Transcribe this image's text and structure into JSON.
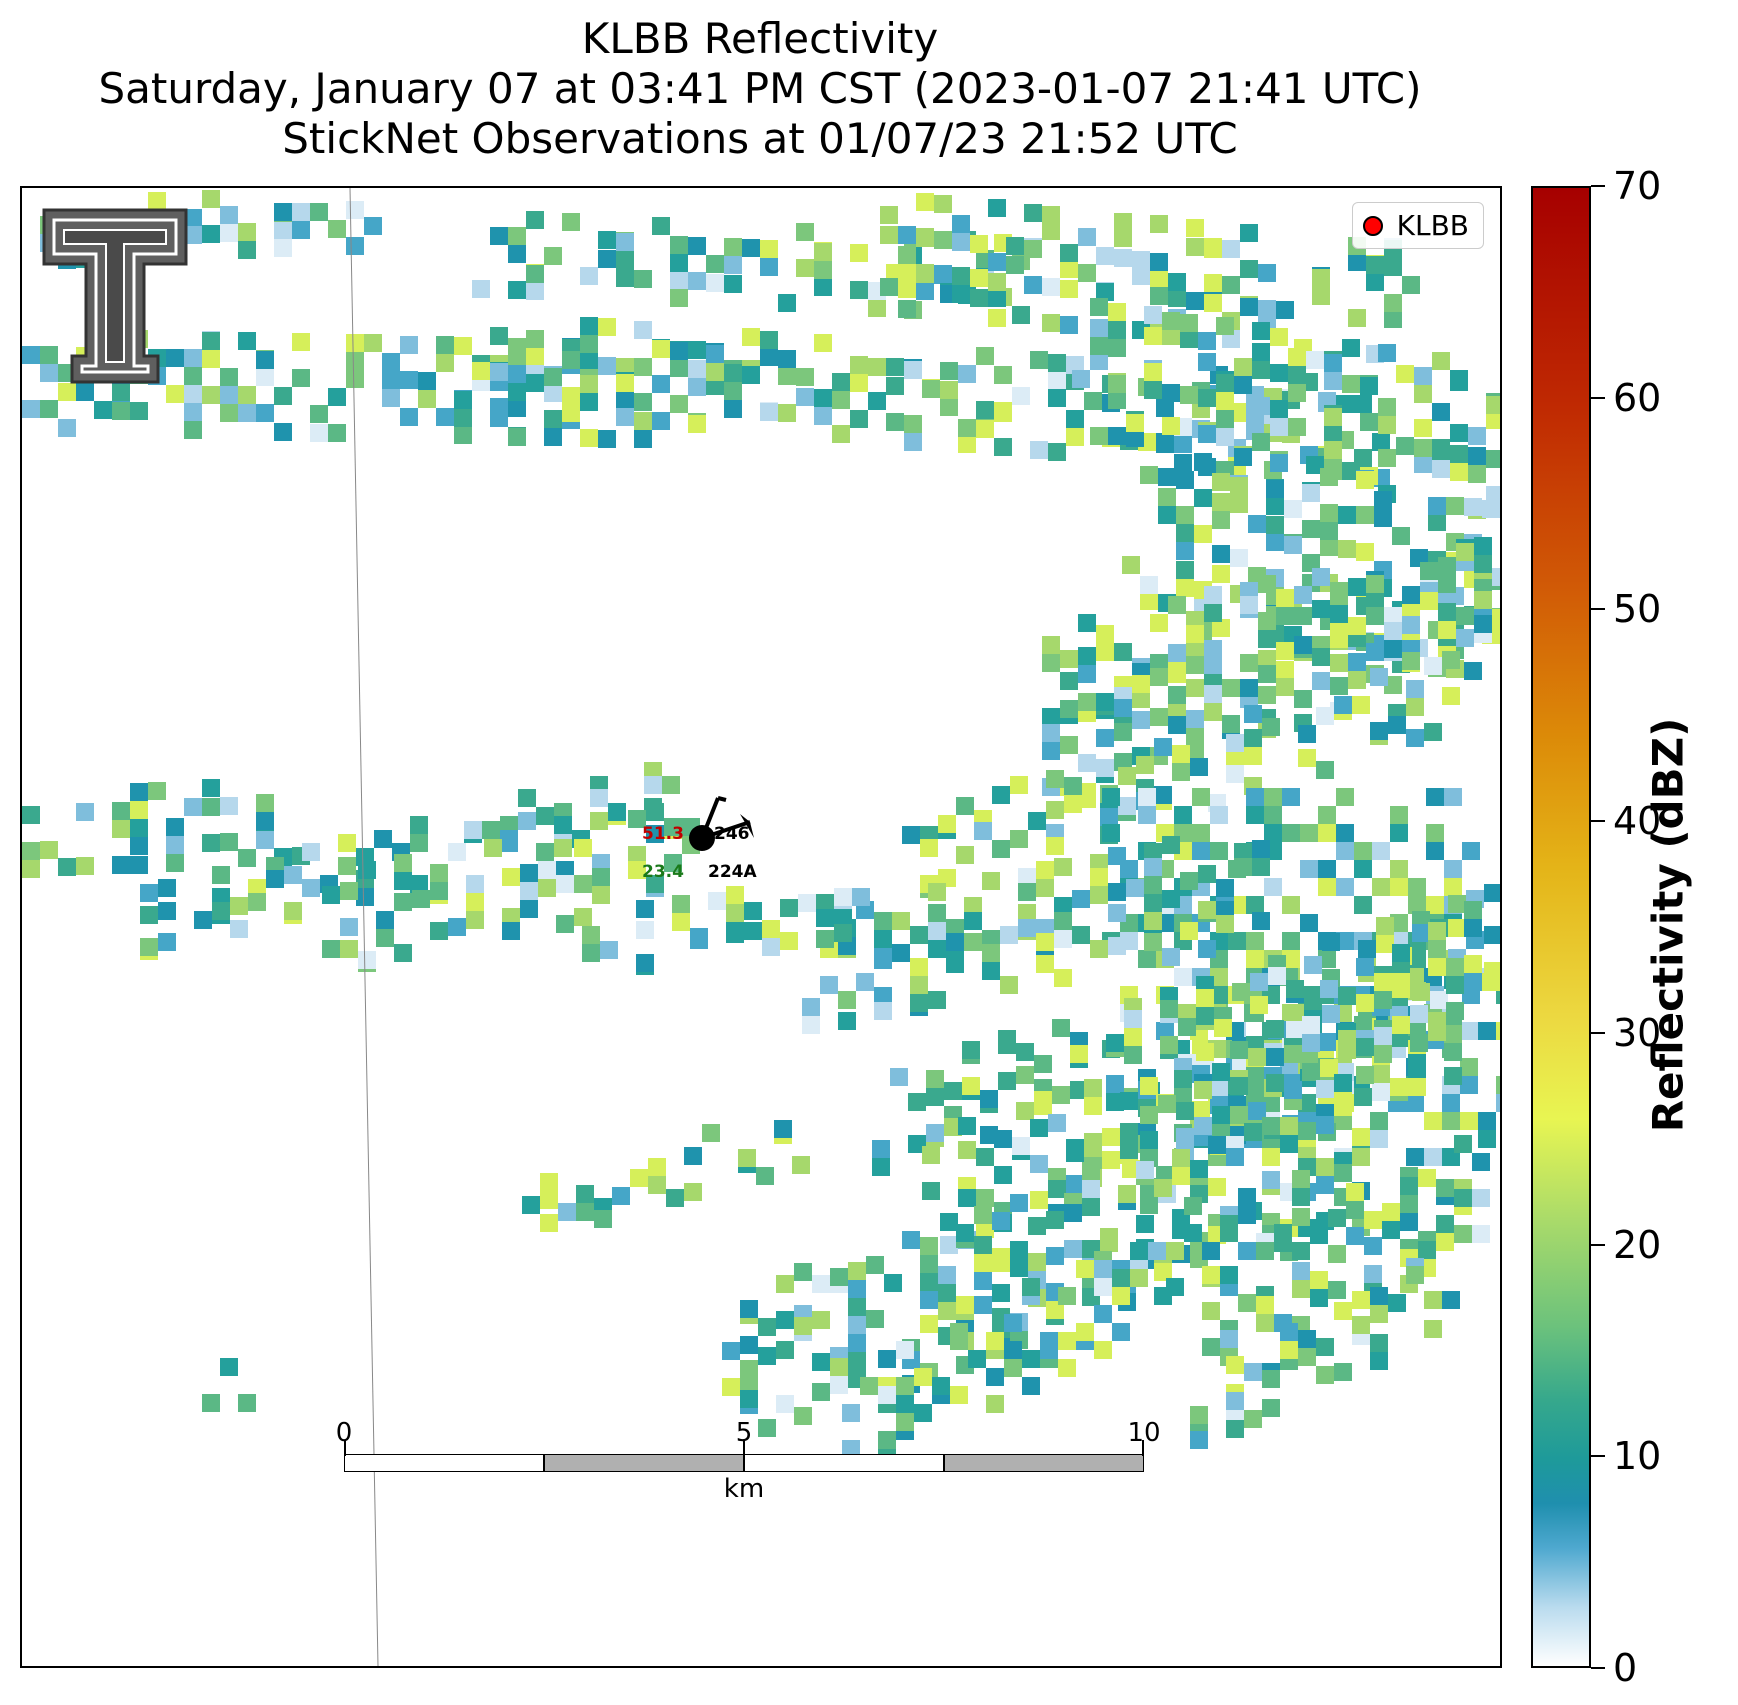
{
  "title": {
    "line1": "KLBB Reflectivity",
    "line2": "Saturday, January 07 at 03:41 PM CST (2023-01-07 21:41 UTC)",
    "line3": "StickNet Observations at 01/07/23 21:52 UTC"
  },
  "legend": {
    "label": "KLBB",
    "marker_color": "#ff0000"
  },
  "colorbar": {
    "label": "Reflectivity (dBZ)",
    "ticks": [
      "0",
      "10",
      "20",
      "30",
      "40",
      "50",
      "60",
      "70"
    ],
    "range": [
      0,
      70
    ]
  },
  "scalebar": {
    "labels": [
      "0",
      "5",
      "10"
    ],
    "unit": "km"
  },
  "station": {
    "temperature": "51.3",
    "dewpoint": "23.4",
    "id_top": "246",
    "id_bottom": "224A",
    "temp_color": "#c00000",
    "dew_color": "#1a7a1a"
  },
  "logo": {
    "name": "Texas Tech Double T"
  }
}
